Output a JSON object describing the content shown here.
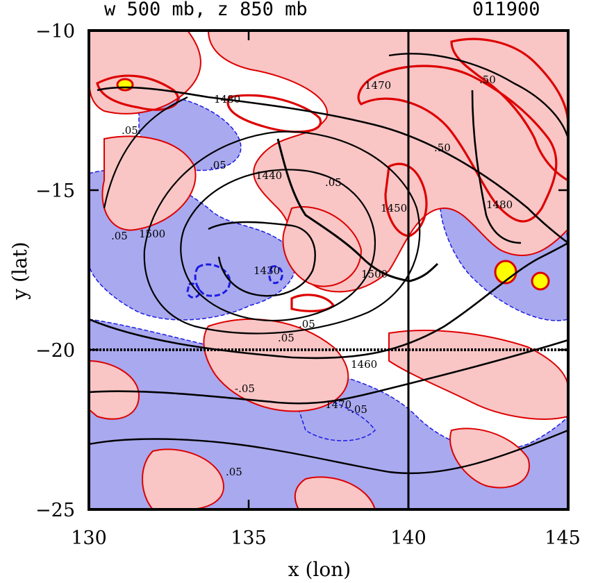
{
  "header": {
    "title": "w 500 mb, z 850 mb",
    "timestamp": "011900"
  },
  "colors": {
    "positive_fill": "#f9c5c5",
    "negative_fill": "#a9a9ef",
    "positive_contour": "#dd0000",
    "negative_contour": "#1a1ae6",
    "strong_core": "#ffff00",
    "height_contour": "#000000"
  },
  "chart_data": {
    "type": "contour-map",
    "xlabel": "x (lon)",
    "ylabel": "y (lat)",
    "xlim": [
      130,
      145
    ],
    "ylim": [
      -25,
      -10
    ],
    "x_ticks": [
      130,
      135,
      140,
      145
    ],
    "y_ticks": [
      -10,
      -15,
      -20,
      -25
    ],
    "x_tick_labels": [
      "130",
      "135",
      "140",
      "145"
    ],
    "y_tick_labels": [
      "−10",
      "−15",
      "−20",
      "−25"
    ],
    "reference_lines": {
      "lon": 140,
      "lat": -20
    },
    "height_contour_labels": [
      "1430",
      "1440",
      "1450",
      "1460",
      "1470",
      "1480",
      "1500"
    ],
    "w_contour_labels": [
      ".05",
      "-.05",
      ".50"
    ]
  }
}
